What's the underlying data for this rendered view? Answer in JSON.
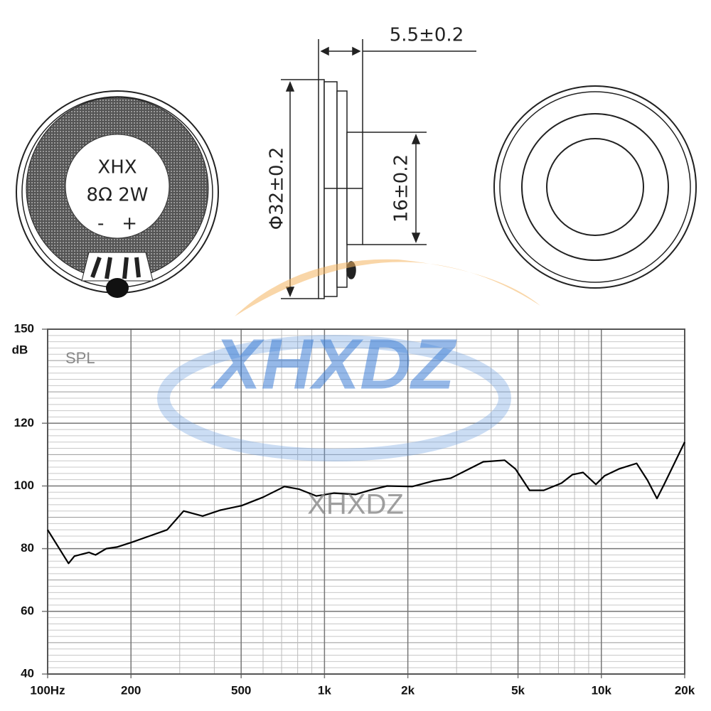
{
  "diagram": {
    "brand": "XHX",
    "spec": "8Ω 2W",
    "terminals": "-   +",
    "thickness": "5.5±0.2",
    "diameter": "Φ32±0.2",
    "magnet": "16±0.2",
    "watermark": "XHXDZ",
    "watermark_small": "XHXDZ"
  },
  "chart_data": {
    "type": "line",
    "ylabel": "dB",
    "annotation": "SPL",
    "x": [
      100,
      119,
      125,
      141,
      149,
      163,
      178,
      201,
      233,
      270,
      310,
      363,
      421,
      502,
      600,
      717,
      808,
      935,
      1083,
      1295,
      1455,
      1683,
      2073,
      2474,
      2864,
      3325,
      3745,
      4476,
      4895,
      5505,
      6194,
      7177,
      7857,
      8589,
      9558,
      10266,
      11568,
      13410,
      14680,
      15880,
      16860,
      20000
    ],
    "values": [
      86,
      75.3,
      77.6,
      78.8,
      78,
      80,
      80.5,
      82,
      84,
      86,
      92,
      90.4,
      92.3,
      93.7,
      96.4,
      99.8,
      99,
      96.8,
      97.7,
      97.3,
      98.6,
      100,
      99.8,
      101.6,
      102.5,
      105.4,
      107.7,
      108.2,
      105.4,
      98.6,
      98.6,
      100.9,
      103.6,
      104.3,
      100.5,
      103.2,
      105.4,
      107.2,
      101.8,
      96,
      100.5,
      114
    ],
    "color": "#000000",
    "xscale": "log",
    "xlim": [
      100,
      20000
    ],
    "xticks": [
      {
        "value": 100,
        "label": "100Hz"
      },
      200,
      500,
      {
        "value": 1000,
        "label": "1k"
      },
      {
        "value": 2000,
        "label": "2k"
      },
      {
        "value": 5000,
        "label": "5k"
      },
      {
        "value": 10000,
        "label": "10k"
      },
      {
        "value": 20000,
        "label": "20k"
      }
    ],
    "ylim": [
      40,
      150
    ],
    "yticks": [
      40,
      60,
      80,
      100,
      120,
      150
    ],
    "grid": true
  }
}
